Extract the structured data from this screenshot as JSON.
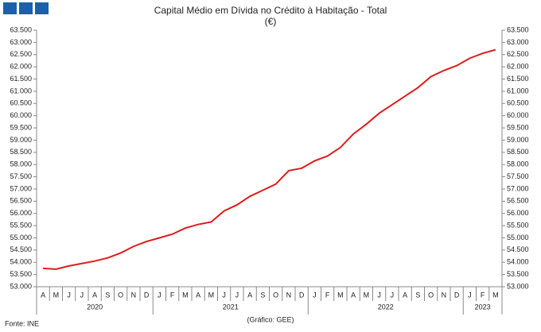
{
  "chart_data": {
    "type": "line",
    "title": "Capital Médio em Dívida no Crédito à Habitação - Total",
    "subtitle": "(€)",
    "source": "Fonte: INE",
    "credit": "(Gráfico: GEE)",
    "category_groups": [
      {
        "label": "2020",
        "categories": [
          "A",
          "M",
          "J",
          "J",
          "A",
          "S",
          "O",
          "N",
          "D"
        ]
      },
      {
        "label": "2021",
        "categories": [
          "J",
          "F",
          "M",
          "A",
          "M",
          "J",
          "J",
          "A",
          "S",
          "O",
          "N",
          "D"
        ]
      },
      {
        "label": "2022",
        "categories": [
          "J",
          "F",
          "M",
          "A",
          "M",
          "J",
          "J",
          "A",
          "S",
          "O",
          "N",
          "D"
        ]
      },
      {
        "label": "2023",
        "categories": [
          "J",
          "F",
          "M"
        ]
      }
    ],
    "values": [
      53750,
      53720,
      53850,
      53950,
      54050,
      54180,
      54380,
      54650,
      54850,
      55000,
      55150,
      55400,
      55550,
      55650,
      56100,
      56350,
      56700,
      56950,
      57200,
      57750,
      57850,
      58150,
      58350,
      58700,
      59250,
      59650,
      60100,
      60450,
      60800,
      61150,
      61600,
      61850,
      62050,
      62350,
      62550,
      62700
    ],
    "color": "#e01b1b",
    "ylim": [
      53000,
      63500
    ],
    "yticks": [
      {
        "value": 53000,
        "label": "53.000"
      },
      {
        "value": 53500,
        "label": "53.500"
      },
      {
        "value": 54000,
        "label": "54.000"
      },
      {
        "value": 54500,
        "label": "54.500"
      },
      {
        "value": 55000,
        "label": "55.000"
      },
      {
        "value": 55500,
        "label": "55.500"
      },
      {
        "value": 56000,
        "label": "56.000"
      },
      {
        "value": 56500,
        "label": "56.500"
      },
      {
        "value": 57000,
        "label": "57.000"
      },
      {
        "value": 57500,
        "label": "57.500"
      },
      {
        "value": 58000,
        "label": "58.000"
      },
      {
        "value": 58500,
        "label": "58.500"
      },
      {
        "value": 59000,
        "label": "59.000"
      },
      {
        "value": 59500,
        "label": "59.500"
      },
      {
        "value": 60000,
        "label": "60.000"
      },
      {
        "value": 60500,
        "label": "60.500"
      },
      {
        "value": 61000,
        "label": "61.000"
      },
      {
        "value": 61500,
        "label": "61.500"
      },
      {
        "value": 62000,
        "label": "62.000"
      },
      {
        "value": 62500,
        "label": "62.500"
      },
      {
        "value": 63000,
        "label": "63.000"
      },
      {
        "value": 63500,
        "label": "63.500"
      }
    ],
    "right_axis": true
  }
}
